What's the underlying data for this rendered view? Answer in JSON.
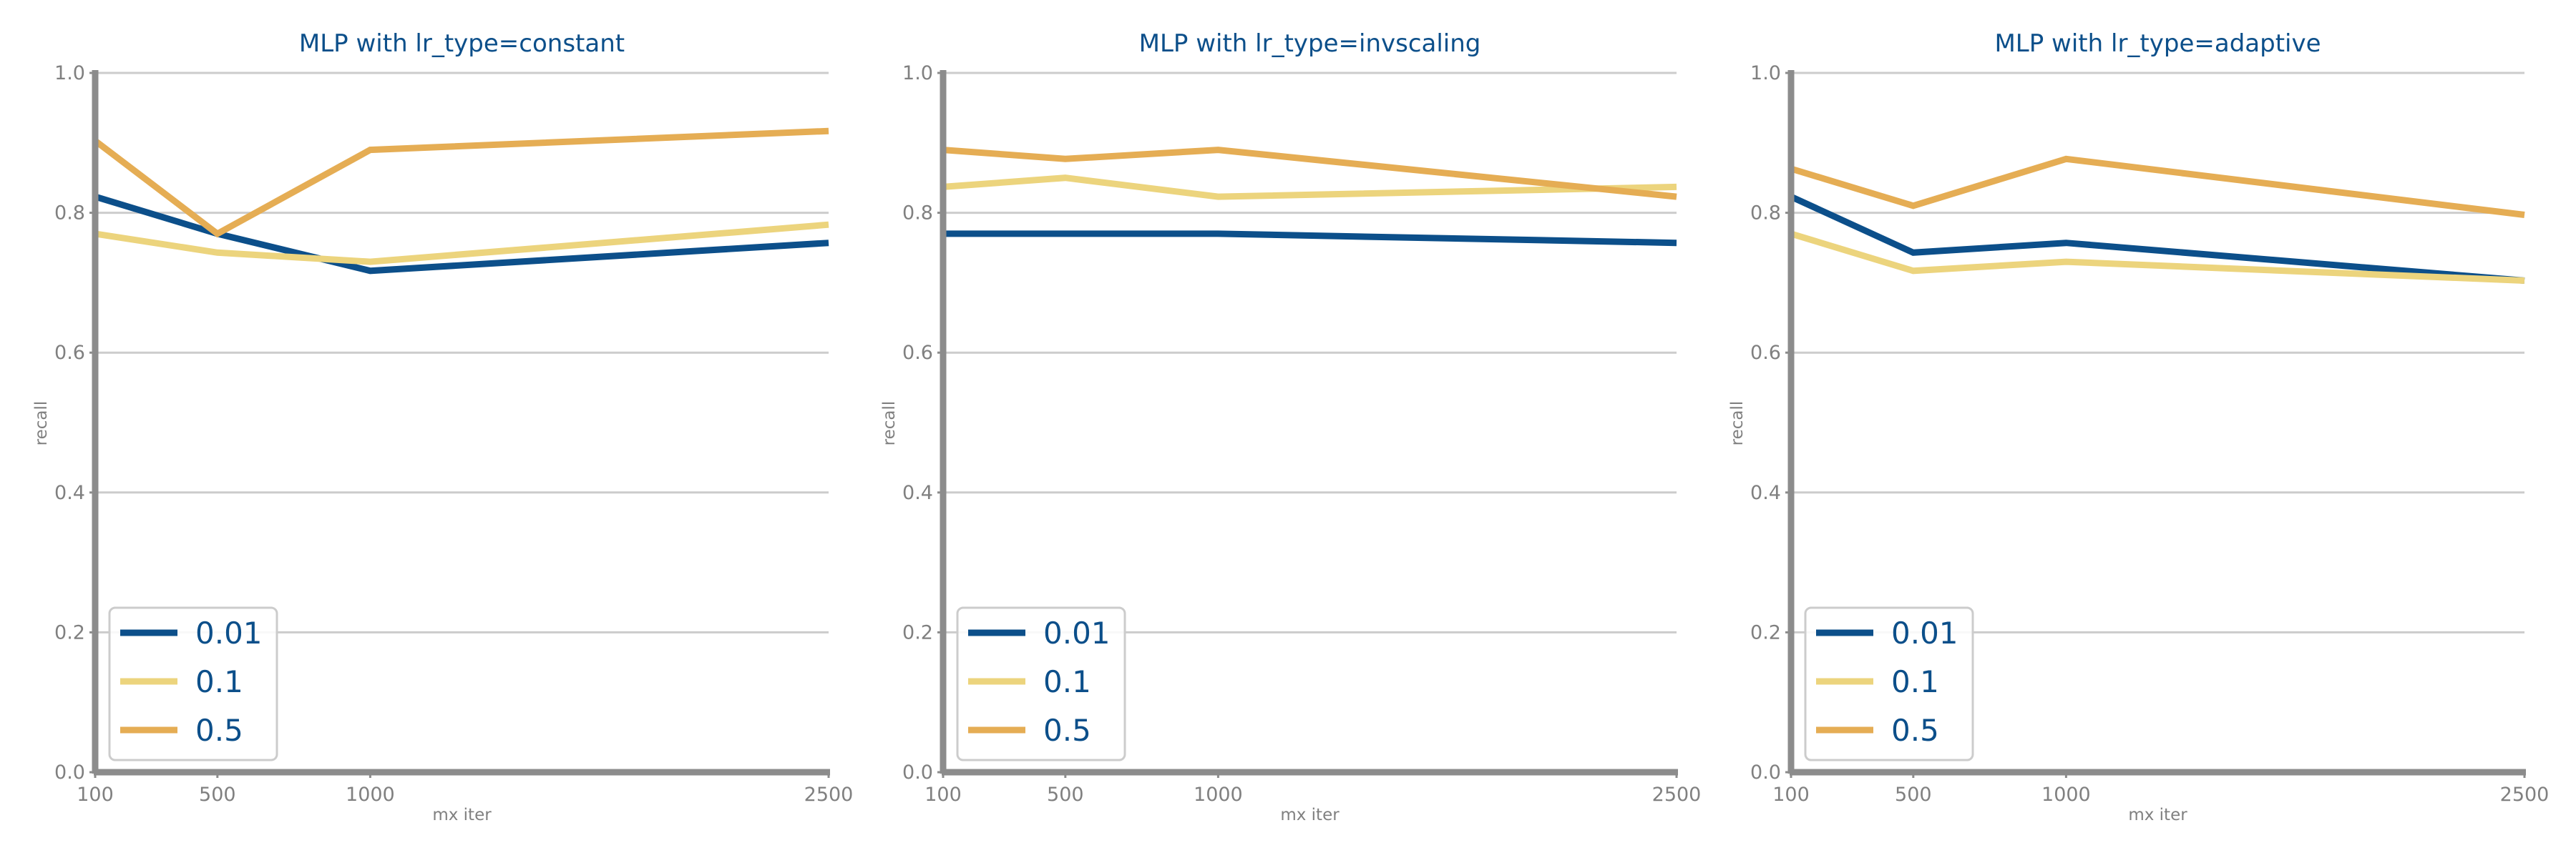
{
  "chart_data": [
    {
      "type": "line",
      "title": "MLP with lr_type=constant",
      "xlabel": "mx iter",
      "ylabel": "recall",
      "x": [
        100,
        500,
        1000,
        2500
      ],
      "xticks": [
        "100",
        "500",
        "1000",
        "2500"
      ],
      "xlim": [
        100,
        2500
      ],
      "ylim": [
        0.0,
        1.0
      ],
      "yticks": [
        "0.0",
        "0.2",
        "0.4",
        "0.6",
        "0.8",
        "1.0"
      ],
      "grid": "horizontal",
      "legend_position": "lower-left",
      "series": [
        {
          "name": "0.01",
          "color": "#0c4f8a",
          "values": [
            0.823,
            0.77,
            0.717,
            0.757
          ]
        },
        {
          "name": "0.1",
          "color": "#ecd47d",
          "values": [
            0.77,
            0.743,
            0.73,
            0.783
          ]
        },
        {
          "name": "0.5",
          "color": "#e5ad54",
          "values": [
            0.903,
            0.77,
            0.89,
            0.917
          ]
        }
      ]
    },
    {
      "type": "line",
      "title": "MLP with lr_type=invscaling",
      "xlabel": "mx iter",
      "ylabel": "recall",
      "x": [
        100,
        500,
        1000,
        2500
      ],
      "xticks": [
        "100",
        "500",
        "1000",
        "2500"
      ],
      "xlim": [
        100,
        2500
      ],
      "ylim": [
        0.0,
        1.0
      ],
      "yticks": [
        "0.0",
        "0.2",
        "0.4",
        "0.6",
        "0.8",
        "1.0"
      ],
      "grid": "horizontal",
      "legend_position": "lower-left",
      "series": [
        {
          "name": "0.01",
          "color": "#0c4f8a",
          "values": [
            0.77,
            0.77,
            0.77,
            0.757
          ]
        },
        {
          "name": "0.1",
          "color": "#ecd47d",
          "values": [
            0.837,
            0.85,
            0.823,
            0.837
          ]
        },
        {
          "name": "0.5",
          "color": "#e5ad54",
          "values": [
            0.89,
            0.877,
            0.89,
            0.823
          ]
        }
      ]
    },
    {
      "type": "line",
      "title": "MLP with lr_type=adaptive",
      "xlabel": "mx iter",
      "ylabel": "recall",
      "x": [
        100,
        500,
        1000,
        2500
      ],
      "xticks": [
        "100",
        "500",
        "1000",
        "2500"
      ],
      "xlim": [
        100,
        2500
      ],
      "ylim": [
        0.0,
        1.0
      ],
      "yticks": [
        "0.0",
        "0.2",
        "0.4",
        "0.6",
        "0.8",
        "1.0"
      ],
      "grid": "horizontal",
      "legend_position": "lower-left",
      "series": [
        {
          "name": "0.01",
          "color": "#0c4f8a",
          "values": [
            0.823,
            0.743,
            0.757,
            0.703
          ]
        },
        {
          "name": "0.1",
          "color": "#ecd47d",
          "values": [
            0.77,
            0.717,
            0.73,
            0.703
          ]
        },
        {
          "name": "0.5",
          "color": "#e5ad54",
          "values": [
            0.863,
            0.81,
            0.877,
            0.797
          ]
        }
      ]
    }
  ]
}
